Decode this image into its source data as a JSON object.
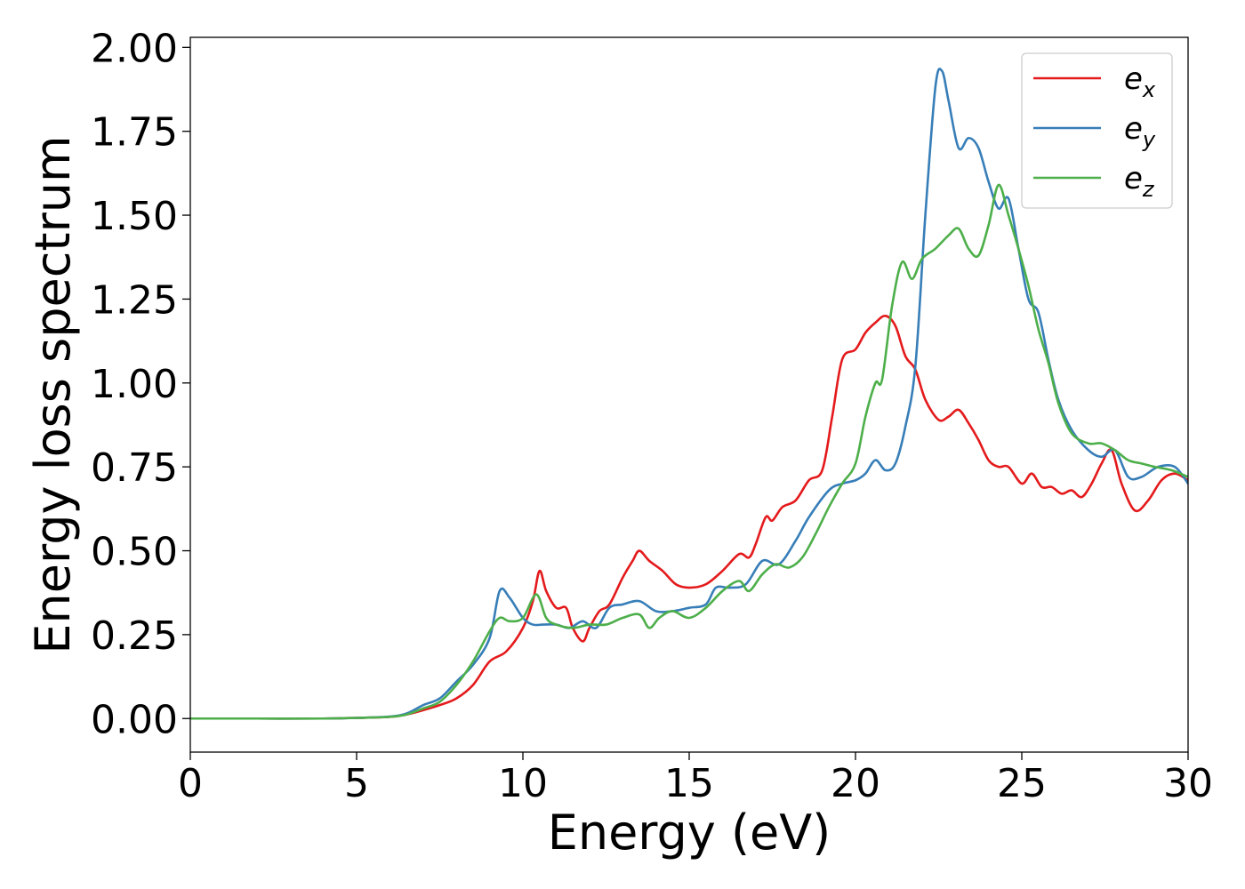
{
  "chart_data": {
    "type": "line",
    "xlabel": "Energy (eV)",
    "ylabel": "Energy loss spectrum",
    "xlim": [
      0,
      30
    ],
    "ylim": [
      -0.1,
      2.03
    ],
    "xticks": [
      "0",
      "5",
      "10",
      "15",
      "20",
      "25",
      "30"
    ],
    "yticks": [
      "0.00",
      "0.25",
      "0.50",
      "0.75",
      "1.00",
      "1.25",
      "1.50",
      "1.75",
      "2.00"
    ],
    "grid": false,
    "legend_position": "top-right",
    "series": [
      {
        "name": "e_x",
        "legend_main": "e",
        "legend_sub": "x",
        "color": "#e41a1c",
        "x": [
          0,
          2,
          4,
          5,
          6,
          6.5,
          7,
          7.5,
          8,
          8.5,
          9,
          9.5,
          10,
          10.3,
          10.5,
          10.7,
          11,
          11.3,
          11.5,
          11.8,
          12,
          12.3,
          12.6,
          13,
          13.3,
          13.5,
          13.8,
          14.2,
          14.6,
          15,
          15.5,
          16,
          16.5,
          16.8,
          17,
          17.3,
          17.5,
          17.8,
          18.2,
          18.6,
          19,
          19.3,
          19.6,
          20,
          20.3,
          20.6,
          20.9,
          21.2,
          21.5,
          21.8,
          22.1,
          22.5,
          22.8,
          23.1,
          23.4,
          23.7,
          24,
          24.3,
          24.6,
          25,
          25.3,
          25.6,
          25.9,
          26.2,
          26.5,
          26.8,
          27.1,
          27.4,
          27.7,
          28,
          28.4,
          28.8,
          29.2,
          29.6,
          30
        ],
        "y": [
          0,
          0,
          0,
          0.002,
          0.005,
          0.012,
          0.025,
          0.04,
          0.06,
          0.1,
          0.17,
          0.2,
          0.27,
          0.35,
          0.44,
          0.38,
          0.33,
          0.33,
          0.27,
          0.23,
          0.27,
          0.32,
          0.34,
          0.42,
          0.47,
          0.5,
          0.47,
          0.44,
          0.4,
          0.39,
          0.4,
          0.44,
          0.49,
          0.48,
          0.52,
          0.6,
          0.59,
          0.63,
          0.65,
          0.71,
          0.74,
          0.9,
          1.07,
          1.1,
          1.15,
          1.18,
          1.2,
          1.17,
          1.08,
          1.04,
          0.95,
          0.89,
          0.9,
          0.92,
          0.88,
          0.83,
          0.77,
          0.75,
          0.75,
          0.7,
          0.73,
          0.69,
          0.69,
          0.67,
          0.68,
          0.66,
          0.7,
          0.76,
          0.8,
          0.7,
          0.62,
          0.65,
          0.71,
          0.73,
          0.71
        ]
      },
      {
        "name": "e_y",
        "legend_main": "e",
        "legend_sub": "y",
        "color": "#377eb8",
        "x": [
          0,
          2,
          4,
          5,
          6,
          6.5,
          7,
          7.5,
          8,
          8.5,
          9,
          9.3,
          9.6,
          10,
          10.3,
          10.6,
          11,
          11.4,
          11.8,
          12.2,
          12.6,
          13,
          13.5,
          14,
          14.5,
          15,
          15.5,
          15.8,
          16.2,
          16.7,
          17.2,
          17.7,
          18.2,
          18.6,
          19.2,
          19.6,
          20,
          20.3,
          20.6,
          20.9,
          21.2,
          21.5,
          21.8,
          22.1,
          22.4,
          22.6,
          22.8,
          23.1,
          23.4,
          23.7,
          24,
          24.3,
          24.6,
          24.9,
          25.2,
          25.5,
          25.8,
          26.1,
          26.5,
          27,
          27.4,
          27.8,
          28.2,
          28.6,
          29.1,
          29.6,
          30
        ],
        "y": [
          0,
          0,
          0,
          0.002,
          0.006,
          0.015,
          0.04,
          0.06,
          0.11,
          0.16,
          0.24,
          0.38,
          0.36,
          0.3,
          0.28,
          0.28,
          0.28,
          0.27,
          0.29,
          0.27,
          0.33,
          0.34,
          0.35,
          0.32,
          0.32,
          0.33,
          0.34,
          0.39,
          0.39,
          0.4,
          0.47,
          0.46,
          0.53,
          0.6,
          0.68,
          0.7,
          0.71,
          0.73,
          0.77,
          0.74,
          0.76,
          0.87,
          1.05,
          1.5,
          1.88,
          1.93,
          1.84,
          1.7,
          1.73,
          1.7,
          1.6,
          1.52,
          1.55,
          1.4,
          1.25,
          1.21,
          1.07,
          0.95,
          0.86,
          0.8,
          0.78,
          0.8,
          0.72,
          0.72,
          0.75,
          0.75,
          0.7
        ]
      },
      {
        "name": "e_z",
        "legend_main": "e",
        "legend_sub": "z",
        "color": "#4daf4a",
        "x": [
          0,
          2,
          4,
          5,
          6,
          6.5,
          7,
          7.5,
          8,
          8.5,
          9,
          9.3,
          9.6,
          10,
          10.4,
          10.7,
          11,
          11.5,
          12,
          12.5,
          13,
          13.5,
          13.8,
          14.1,
          14.5,
          15,
          15.5,
          16,
          16.5,
          16.8,
          17.2,
          17.6,
          18,
          18.4,
          18.8,
          19.2,
          19.6,
          20,
          20.3,
          20.6,
          20.8,
          21.1,
          21.4,
          21.7,
          22,
          22.4,
          22.8,
          23.1,
          23.4,
          23.7,
          24,
          24.3,
          24.6,
          24.9,
          25.2,
          25.5,
          25.8,
          26.1,
          26.5,
          27,
          27.4,
          27.8,
          28.2,
          28.6,
          29,
          29.5,
          30
        ],
        "y": [
          0,
          0,
          0,
          0.002,
          0.005,
          0.012,
          0.03,
          0.05,
          0.1,
          0.17,
          0.26,
          0.3,
          0.29,
          0.3,
          0.37,
          0.3,
          0.28,
          0.27,
          0.28,
          0.28,
          0.3,
          0.31,
          0.27,
          0.3,
          0.32,
          0.3,
          0.33,
          0.38,
          0.41,
          0.38,
          0.43,
          0.46,
          0.45,
          0.48,
          0.55,
          0.63,
          0.7,
          0.76,
          0.9,
          1.0,
          1.01,
          1.23,
          1.36,
          1.31,
          1.37,
          1.4,
          1.44,
          1.46,
          1.4,
          1.38,
          1.47,
          1.59,
          1.5,
          1.4,
          1.29,
          1.16,
          1.06,
          0.94,
          0.85,
          0.82,
          0.82,
          0.8,
          0.77,
          0.76,
          0.75,
          0.74,
          0.72
        ]
      }
    ]
  }
}
